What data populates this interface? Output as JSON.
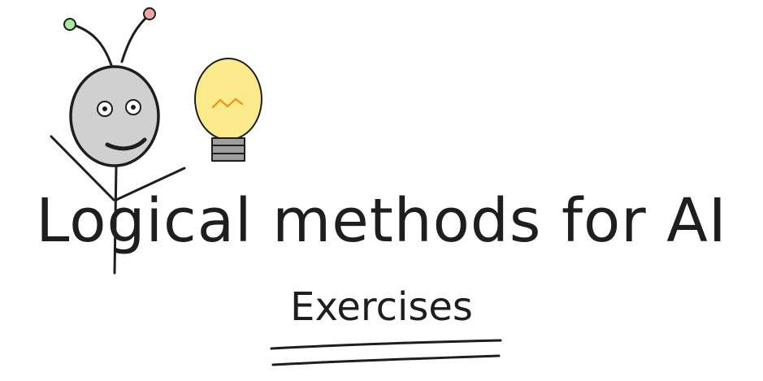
{
  "title": "Logical methods for AI",
  "subtitle": "Exercises",
  "icons": [
    "robot-figure-icon",
    "light-bulb-icon"
  ],
  "colors": {
    "ink": "#1e1e1e",
    "robot_head": "#d0d0d0",
    "antenna_left_tip": "#a8e6a1",
    "antenna_right_tip": "#f4a6a6",
    "bulb_glass": "#fbea8c",
    "bulb_filament": "#f08c00",
    "bulb_base": "#9e9e9e"
  }
}
